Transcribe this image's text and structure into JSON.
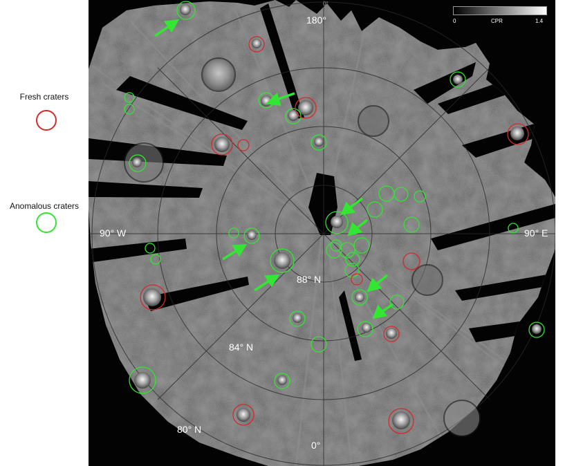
{
  "legend": {
    "fresh_label": "Fresh craters",
    "anomalous_label": "Anomalous craters",
    "fresh_color": "#d42a2a",
    "anomalous_color": "#2ee82e"
  },
  "map": {
    "top_tick": "0°",
    "longitude_top": "180°",
    "longitude_bottom": "0°",
    "longitude_left": "90° W",
    "longitude_right": "90° E",
    "lat_88": "88° N",
    "lat_84": "84° N",
    "lat_80": "80° N",
    "arrow_color": "#33e633"
  },
  "scalebar": {
    "min": "0",
    "label": "CPR",
    "max": "1.4"
  }
}
